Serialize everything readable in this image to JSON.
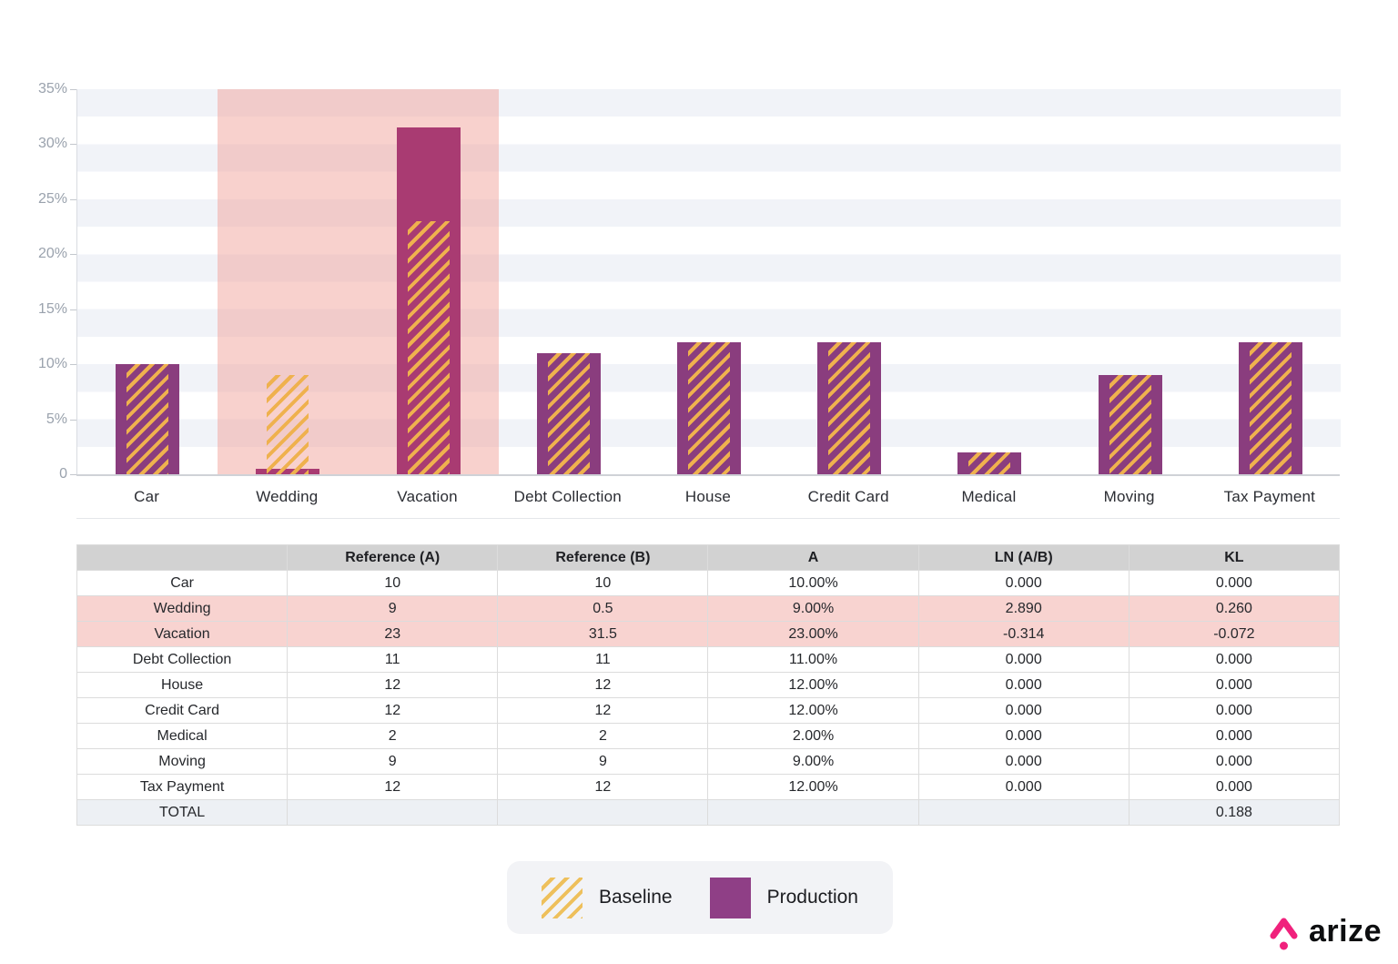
{
  "brand": {
    "logo_text": "arize",
    "logo_color": "#f0217c"
  },
  "colors": {
    "production": "#8a3d7e",
    "production_highlighted": "#a93b72",
    "baseline_hatch": "#efb14e",
    "highlight_band": "rgba(242,163,156,0.5)",
    "table_header_bg": "#d2d2d2",
    "table_highlight_row_bg": "#f8d3d0",
    "table_total_row_bg": "#edf0f4"
  },
  "chart_data": {
    "type": "bar",
    "title": "",
    "xlabel": "",
    "ylabel": "",
    "ymax": 35,
    "yticks": [
      "35%",
      "30%",
      "25%",
      "20%",
      "15%",
      "10%",
      "5%",
      "0"
    ],
    "grid": "striped-horizontal",
    "categories": [
      "Car",
      "Wedding",
      "Vacation",
      "Debt Collection",
      "House",
      "Credit Card",
      "Medical",
      "Moving",
      "Tax Payment"
    ],
    "series": [
      {
        "name": "Baseline",
        "style": "hatch",
        "color": "#efb14e",
        "values": [
          10,
          9,
          23,
          11,
          12,
          12,
          2,
          9,
          12
        ]
      },
      {
        "name": "Production",
        "style": "solid",
        "color": "#8a3d7e",
        "highlight_color": "#a93b72",
        "values": [
          10,
          0.5,
          31.5,
          11,
          12,
          12,
          2,
          9,
          12
        ]
      }
    ],
    "highlight_band": {
      "categories": [
        "Wedding",
        "Vacation"
      ],
      "color": "rgba(242,163,156,0.5)"
    },
    "legend_position": "bottom"
  },
  "table": {
    "headers": [
      "",
      "Reference (A)",
      "Reference (B)",
      "A",
      "LN (A/B)",
      "KL"
    ],
    "rows": [
      {
        "cells": [
          "Car",
          "10",
          "10",
          "10.00%",
          "0.000",
          "0.000"
        ],
        "highlight": false,
        "total": false
      },
      {
        "cells": [
          "Wedding",
          "9",
          "0.5",
          "9.00%",
          "2.890",
          "0.260"
        ],
        "highlight": true,
        "total": false
      },
      {
        "cells": [
          "Vacation",
          "23",
          "31.5",
          "23.00%",
          "-0.314",
          "-0.072"
        ],
        "highlight": true,
        "total": false
      },
      {
        "cells": [
          "Debt Collection",
          "11",
          "11",
          "11.00%",
          "0.000",
          "0.000"
        ],
        "highlight": false,
        "total": false
      },
      {
        "cells": [
          "House",
          "12",
          "12",
          "12.00%",
          "0.000",
          "0.000"
        ],
        "highlight": false,
        "total": false
      },
      {
        "cells": [
          "Credit Card",
          "12",
          "12",
          "12.00%",
          "0.000",
          "0.000"
        ],
        "highlight": false,
        "total": false
      },
      {
        "cells": [
          "Medical",
          "2",
          "2",
          "2.00%",
          "0.000",
          "0.000"
        ],
        "highlight": false,
        "total": false
      },
      {
        "cells": [
          "Moving",
          "9",
          "9",
          "9.00%",
          "0.000",
          "0.000"
        ],
        "highlight": false,
        "total": false
      },
      {
        "cells": [
          "Tax Payment",
          "12",
          "12",
          "12.00%",
          "0.000",
          "0.000"
        ],
        "highlight": false,
        "total": false
      },
      {
        "cells": [
          "TOTAL",
          "",
          "",
          "",
          "",
          "0.188"
        ],
        "highlight": false,
        "total": true
      }
    ]
  },
  "legend": {
    "items": [
      {
        "label": "Baseline",
        "style": "hatch"
      },
      {
        "label": "Production",
        "style": "solid"
      }
    ]
  }
}
